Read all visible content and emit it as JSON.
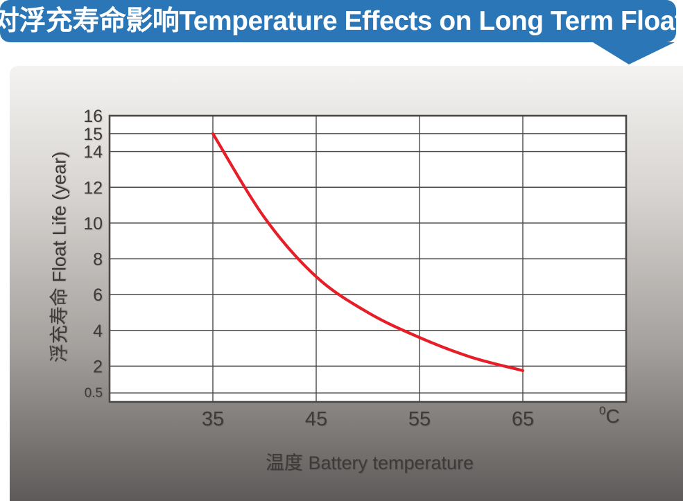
{
  "banner": {
    "title": "温度对浮充寿命影响Temperature Effects on Long Term Float Life",
    "bg_color": "#2b76b6",
    "text_color": "#ffffff"
  },
  "colors": {
    "grid": "#4b4746",
    "plot_border": "#4b4746",
    "axis_text": "#3e3a39",
    "plot_bg": "#ffffff"
  },
  "chart_data": {
    "type": "line",
    "title": "温度对浮充寿命影响 Temperature Effects on Long Term Float Life",
    "xlabel": "温度  Battery temperature",
    "ylabel": "浮充寿命  Float Life (year)",
    "x_unit_sup": "0",
    "x_unit_main": "C",
    "xlim": [
      25,
      75
    ],
    "ylim": [
      0,
      16
    ],
    "x_ticks": [
      35,
      45,
      55,
      65
    ],
    "y_ticks": [
      16,
      15,
      14,
      12,
      10,
      8,
      6,
      4,
      2,
      0.5
    ],
    "grid": true,
    "legend_position": "none",
    "series": [
      {
        "name": "float-life-vs-temperature",
        "color": "#e51e28",
        "points": [
          {
            "x": 35,
            "y": 15.0
          },
          {
            "x": 40,
            "y": 10.3
          },
          {
            "x": 45,
            "y": 7.0
          },
          {
            "x": 50,
            "y": 5.0
          },
          {
            "x": 55,
            "y": 3.6
          },
          {
            "x": 60,
            "y": 2.5
          },
          {
            "x": 65,
            "y": 1.75
          }
        ]
      }
    ]
  }
}
